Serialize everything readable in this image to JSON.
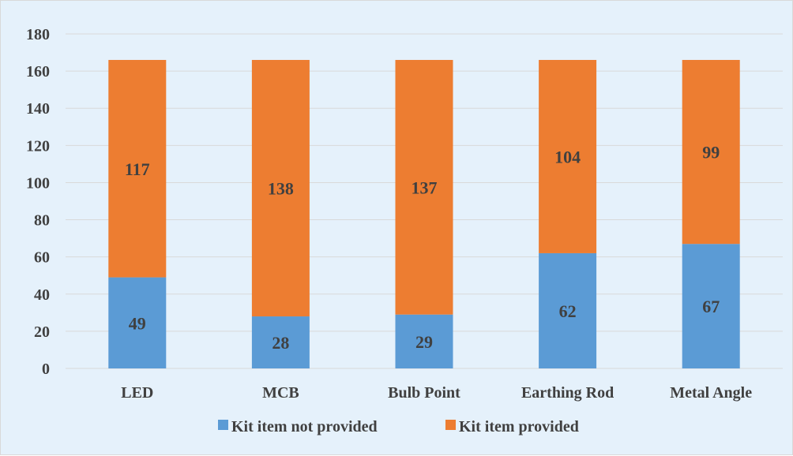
{
  "chart_data": {
    "type": "bar",
    "stacked": true,
    "categories": [
      "LED",
      "MCB",
      "Bulb Point",
      "Earthing Rod",
      "Metal Angle"
    ],
    "series": [
      {
        "name": "Kit item not provided",
        "color": "#5b9bd5",
        "values": [
          49,
          28,
          29,
          62,
          67
        ]
      },
      {
        "name": "Kit item provided",
        "color": "#ed7d31",
        "values": [
          117,
          138,
          137,
          104,
          99
        ]
      }
    ],
    "yticks": [
      "0",
      "20",
      "40",
      "60",
      "80",
      "100",
      "120",
      "140",
      "160",
      "180"
    ],
    "ylim": [
      0,
      180
    ],
    "grid": true,
    "legend_position": "bottom",
    "background": "#e5f1fb"
  }
}
